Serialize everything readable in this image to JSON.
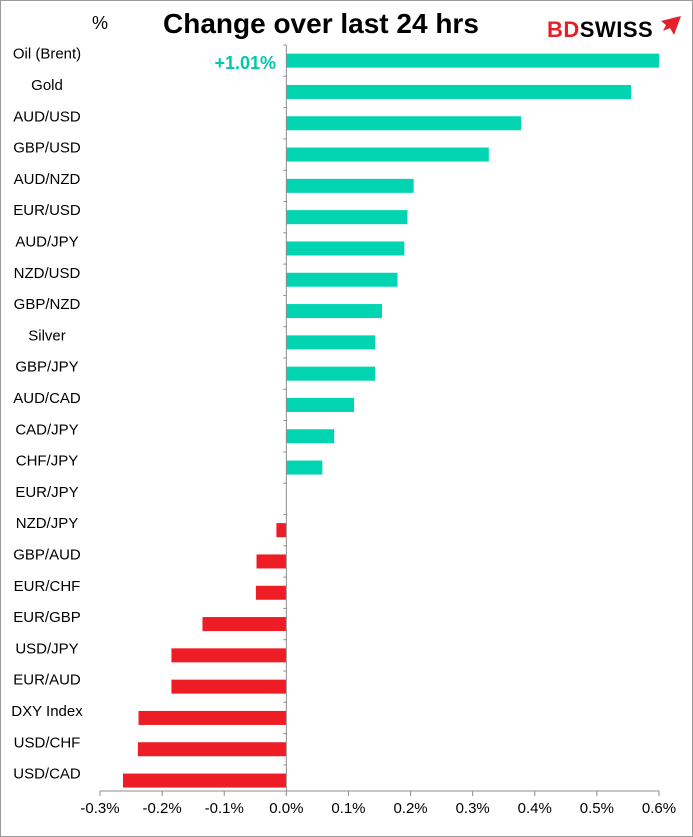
{
  "chart_data": {
    "type": "bar",
    "orientation": "horizontal",
    "title": "Change over last 24 hrs",
    "unit_label": "%",
    "annotation": "+1.01%",
    "brand": {
      "part1": "BD",
      "part2": "SWISS"
    },
    "categories": [
      "Oil (Brent)",
      "Gold",
      "AUD/USD",
      "GBP/USD",
      "AUD/NZD",
      "EUR/USD",
      "AUD/JPY",
      "NZD/USD",
      "GBP/NZD",
      "Silver",
      "GBP/JPY",
      "AUD/CAD",
      "CAD/JPY",
      "CHF/JPY",
      "EUR/JPY",
      "NZD/JPY",
      "GBP/AUD",
      "EUR/CHF",
      "EUR/GBP",
      "USD/JPY",
      "EUR/AUD",
      "DXY Index",
      "USD/CHF",
      "USD/CAD"
    ],
    "values": [
      0.6,
      0.555,
      0.378,
      0.326,
      0.205,
      0.195,
      0.19,
      0.179,
      0.154,
      0.143,
      0.143,
      0.109,
      0.077,
      0.058,
      0.0,
      -0.016,
      -0.048,
      -0.049,
      -0.135,
      -0.185,
      -0.185,
      -0.238,
      -0.239,
      -0.263
    ],
    "xlim": [
      -0.3,
      0.6
    ],
    "xticks": [
      -0.3,
      -0.2,
      -0.1,
      0.0,
      0.1,
      0.2,
      0.3,
      0.4,
      0.5,
      0.6
    ],
    "xtick_labels": [
      "-0.3%",
      "-0.2%",
      "-0.1%",
      "0.0%",
      "0.1%",
      "0.2%",
      "0.3%",
      "0.4%",
      "0.5%",
      "0.6%"
    ],
    "colors": {
      "positive": "#00d4b0",
      "negative": "#ee1c25",
      "brand_red": "#e5202b",
      "annotation": "#00c9a7"
    },
    "grid": false,
    "legend": "none"
  }
}
